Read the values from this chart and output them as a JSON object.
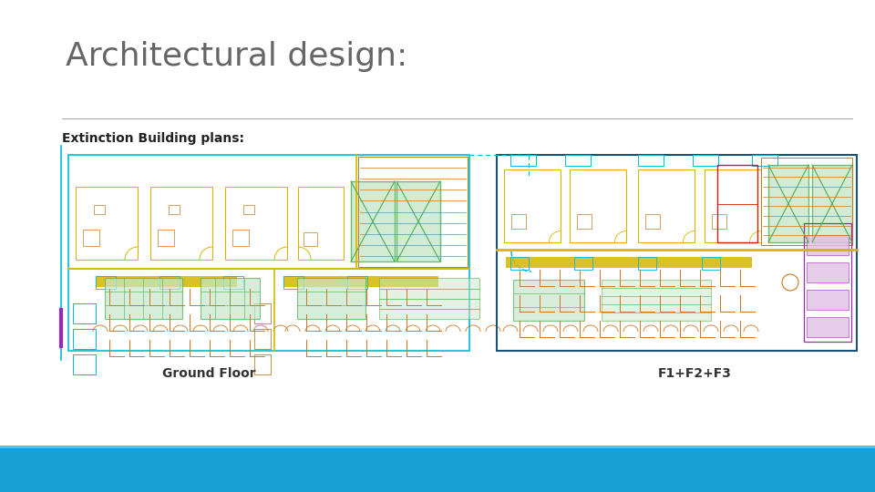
{
  "title": "Architectural design:",
  "subtitle": "Extinction Building plans:",
  "label_left": "Ground Floor",
  "label_right": "F1+F2+F3",
  "title_fontsize": 26,
  "subtitle_fontsize": 10,
  "label_fontsize": 9,
  "bg_color": "#ffffff",
  "footer_color": "#1a9fd4",
  "footer_top_color": "#4fc3f7",
  "title_color": "#666666",
  "subtitle_color": "#222222",
  "divider_color": "#aaaaaa",
  "yellow": "#d4b800",
  "cyan": "#00bcd4",
  "green": "#4caf50",
  "orange": "#cc7722",
  "blue": "#1a5276",
  "purple": "#9c27b0",
  "red": "#cc2200",
  "light_green_bg": "#c8e6c9"
}
